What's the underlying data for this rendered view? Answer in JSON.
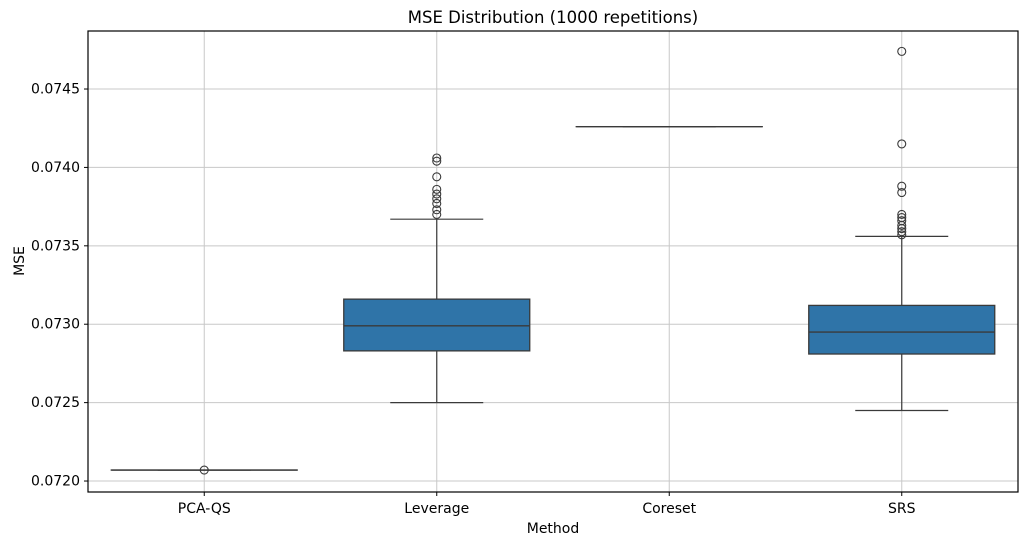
{
  "chart_data": {
    "type": "box",
    "title": "MSE Distribution (1000 repetitions)",
    "xlabel": "Method",
    "ylabel": "MSE",
    "categories": [
      "PCA-QS",
      "Leverage",
      "Coreset",
      "SRS"
    ],
    "ylim": [
      0.07193,
      0.07487
    ],
    "yticks": [
      0.072,
      0.0725,
      0.073,
      0.0735,
      0.074,
      0.0745
    ],
    "ytick_labels": [
      "0.0720",
      "0.0725",
      "0.0730",
      "0.0735",
      "0.0740",
      "0.0745"
    ],
    "grid": true,
    "legend": "none",
    "series": [
      {
        "name": "PCA-QS",
        "whislo": 0.07207,
        "q1": 0.07207,
        "med": 0.07207,
        "q3": 0.07207,
        "whishi": 0.07207,
        "outliers": [
          0.07207
        ]
      },
      {
        "name": "Leverage",
        "whislo": 0.0725,
        "q1": 0.07283,
        "med": 0.07299,
        "q3": 0.07316,
        "whishi": 0.07367,
        "outliers": [
          0.0737,
          0.07373,
          0.07377,
          0.0738,
          0.07383,
          0.07386,
          0.07394,
          0.07404,
          0.07406
        ]
      },
      {
        "name": "Coreset",
        "whislo": 0.07426,
        "q1": 0.07426,
        "med": 0.07426,
        "q3": 0.07426,
        "whishi": 0.07426,
        "outliers": []
      },
      {
        "name": "SRS",
        "whislo": 0.07245,
        "q1": 0.07281,
        "med": 0.07295,
        "q3": 0.07312,
        "whishi": 0.07356,
        "outliers": [
          0.07357,
          0.07359,
          0.07361,
          0.07363,
          0.07366,
          0.07368,
          0.0737,
          0.07384,
          0.07388,
          0.07415,
          0.07474
        ]
      }
    ],
    "colors": {
      "box_fill": "#2f74a8",
      "edge": "#3a3a3a",
      "grid": "#c8c8c8",
      "frame": "#000000",
      "background": "#ffffff"
    }
  }
}
